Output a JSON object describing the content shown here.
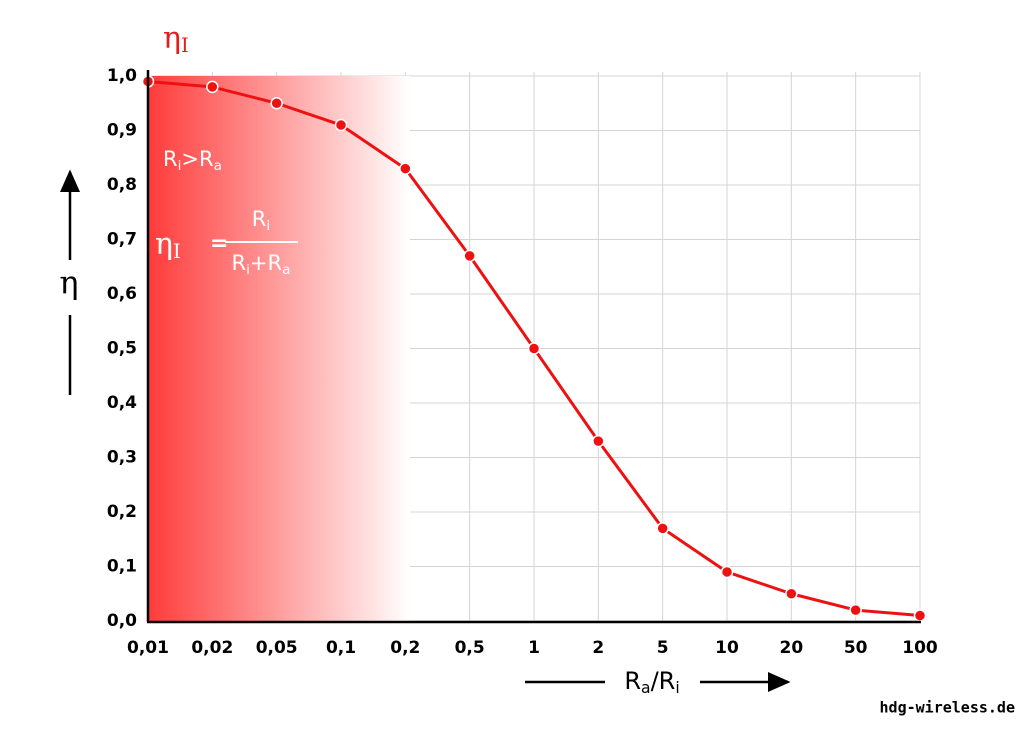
{
  "chart_data": {
    "type": "line",
    "title": [
      "η",
      "I"
    ],
    "categories": [
      "0,01",
      "0,02",
      "0,05",
      "0,1",
      "0,2",
      "0,5",
      "1",
      "2",
      "5",
      "10",
      "20",
      "50",
      "100"
    ],
    "values": [
      0.99,
      0.98,
      0.95,
      0.91,
      0.83,
      0.67,
      0.5,
      0.33,
      0.17,
      0.09,
      0.05,
      0.02,
      0.01
    ],
    "color": "#ee1111",
    "ylim": [
      0,
      1
    ],
    "yticks": [
      {
        "value": 0,
        "label": "0,0"
      },
      {
        "value": 0.1,
        "label": "0,1"
      },
      {
        "value": 0.2,
        "label": "0,2"
      },
      {
        "value": 0.3,
        "label": "0,3"
      },
      {
        "value": 0.4,
        "label": "0,4"
      },
      {
        "value": 0.5,
        "label": "0,5"
      },
      {
        "value": 0.6,
        "label": "0,6"
      },
      {
        "value": 0.7,
        "label": "0,7"
      },
      {
        "value": 0.8,
        "label": "0,8"
      },
      {
        "value": 0.9,
        "label": "0,9"
      },
      {
        "value": 1,
        "label": "1,0"
      }
    ],
    "grid": true,
    "ylabel": "η",
    "xlabel": [
      "R",
      "a",
      "/R",
      "i"
    ],
    "condition": [
      "R",
      "i",
      ">R",
      "a"
    ],
    "formula": {
      "lhs": [
        "η",
        "I"
      ],
      "equals": "=",
      "numerator": [
        "R",
        "i"
      ],
      "denominator": [
        "R",
        "i",
        "+R",
        "a"
      ]
    },
    "watermark": "hdg-wireless.de"
  }
}
